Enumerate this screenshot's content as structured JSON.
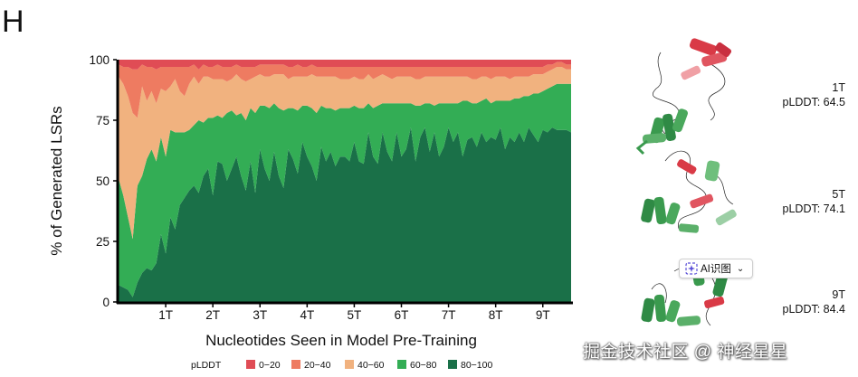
{
  "panel_letter": "H",
  "chart_data": {
    "type": "area",
    "stacked": true,
    "ylabel": "% of Generated LSRs",
    "xlabel": "Nucleotides Seen in Model Pre-Training",
    "ylim": [
      0,
      100
    ],
    "xlim": [
      0,
      9.6
    ],
    "yticks": [
      "0",
      "25",
      "50",
      "75",
      "100"
    ],
    "ytick_values": [
      0,
      25,
      50,
      75,
      100
    ],
    "xticks": [
      "1T",
      "2T",
      "3T",
      "4T",
      "5T",
      "6T",
      "7T",
      "8T",
      "9T"
    ],
    "xtick_values": [
      1,
      2,
      3,
      4,
      5,
      6,
      7,
      8,
      9
    ],
    "legend_title": "pLDDT",
    "legend_position": "bottom",
    "x": [
      0,
      0.1,
      0.2,
      0.3,
      0.4,
      0.5,
      0.6,
      0.7,
      0.8,
      0.9,
      1.0,
      1.1,
      1.2,
      1.3,
      1.4,
      1.5,
      1.6,
      1.7,
      1.8,
      1.9,
      2.0,
      2.1,
      2.2,
      2.3,
      2.4,
      2.5,
      2.6,
      2.7,
      2.8,
      2.9,
      3.0,
      3.1,
      3.2,
      3.3,
      3.4,
      3.5,
      3.6,
      3.7,
      3.8,
      3.9,
      4.0,
      4.1,
      4.2,
      4.3,
      4.4,
      4.5,
      4.6,
      4.7,
      4.8,
      4.9,
      5.0,
      5.1,
      5.2,
      5.3,
      5.4,
      5.5,
      5.6,
      5.7,
      5.8,
      5.9,
      6.0,
      6.1,
      6.2,
      6.3,
      6.4,
      6.5,
      6.6,
      6.7,
      6.8,
      6.9,
      7.0,
      7.1,
      7.2,
      7.3,
      7.4,
      7.5,
      7.6,
      7.7,
      7.8,
      7.9,
      8.0,
      8.1,
      8.2,
      8.3,
      8.4,
      8.5,
      8.6,
      8.7,
      8.8,
      8.9,
      9.0,
      9.1,
      9.2,
      9.3,
      9.4,
      9.5,
      9.6
    ],
    "series": [
      {
        "name": "80−100",
        "color": "#1a7048",
        "values": [
          7,
          6,
          5,
          2,
          8,
          12,
          14,
          13,
          16,
          28,
          20,
          35,
          30,
          40,
          43,
          46,
          48,
          45,
          52,
          55,
          44,
          58,
          57,
          50,
          55,
          60,
          52,
          46,
          58,
          45,
          63,
          55,
          50,
          62,
          52,
          47,
          63,
          59,
          53,
          66,
          60,
          56,
          50,
          64,
          58,
          62,
          56,
          60,
          60,
          58,
          66,
          58,
          57,
          70,
          60,
          57,
          70,
          62,
          58,
          70,
          60,
          63,
          72,
          58,
          68,
          72,
          62,
          70,
          60,
          64,
          72,
          66,
          70,
          60,
          67,
          68,
          64,
          70,
          66,
          68,
          67,
          72,
          63,
          68,
          66,
          70,
          66,
          72,
          69,
          66,
          71,
          70,
          72,
          71,
          71,
          71,
          70
        ]
      },
      {
        "name": "60−80",
        "color": "#33ad55",
        "values": [
          44,
          38,
          30,
          24,
          40,
          40,
          45,
          50,
          42,
          40,
          40,
          36,
          40,
          30,
          27,
          25,
          25,
          30,
          22,
          21,
          32,
          19,
          19,
          28,
          24,
          17,
          26,
          29,
          22,
          33,
          18,
          26,
          30,
          20,
          28,
          32,
          17,
          21,
          26,
          15,
          21,
          24,
          28,
          17,
          22,
          18,
          23,
          20,
          20,
          22,
          15,
          22,
          23,
          12,
          20,
          24,
          12,
          20,
          24,
          12,
          22,
          19,
          10,
          23,
          13,
          10,
          20,
          11,
          22,
          18,
          10,
          16,
          12,
          23,
          16,
          14,
          18,
          13,
          18,
          14,
          16,
          11,
          20,
          15,
          18,
          14,
          19,
          13,
          17,
          20,
          16,
          18,
          17,
          19,
          19,
          19,
          20
        ]
      },
      {
        "name": "40−60",
        "color": "#f1b27f",
        "values": [
          42,
          46,
          50,
          52,
          28,
          37,
          24,
          24,
          24,
          20,
          27,
          18,
          22,
          17,
          15,
          19,
          20,
          15,
          19,
          17,
          16,
          15,
          16,
          13,
          13,
          17,
          14,
          16,
          12,
          15,
          13,
          12,
          13,
          12,
          14,
          15,
          12,
          13,
          14,
          12,
          12,
          14,
          15,
          12,
          13,
          13,
          14,
          12,
          12,
          12,
          12,
          12,
          12,
          12,
          12,
          12,
          12,
          11,
          10,
          11,
          11,
          11,
          11,
          11,
          11,
          11,
          11,
          12,
          11,
          11,
          11,
          11,
          11,
          10,
          10,
          10,
          10,
          10,
          9,
          10,
          10,
          10,
          10,
          9,
          9,
          9,
          8,
          8,
          8,
          8,
          7,
          7,
          7,
          7,
          7,
          6,
          6
        ]
      },
      {
        "name": "20−40",
        "color": "#ee7b61",
        "values": [
          5,
          7,
          12,
          18,
          20,
          9,
          14,
          10,
          14,
          9,
          10,
          8,
          5,
          10,
          12,
          7,
          5,
          6,
          5,
          4,
          5,
          6,
          5,
          6,
          5,
          4,
          5,
          6,
          5,
          4,
          4,
          5,
          5,
          4,
          4,
          4,
          5,
          4,
          5,
          4,
          4,
          4,
          4,
          4,
          4,
          4,
          4,
          5,
          5,
          5,
          4,
          5,
          5,
          3,
          5,
          4,
          3,
          4,
          5,
          4,
          4,
          4,
          4,
          5,
          5,
          4,
          4,
          4,
          4,
          4,
          4,
          4,
          4,
          4,
          4,
          5,
          5,
          4,
          4,
          5,
          4,
          4,
          4,
          5,
          4,
          4,
          4,
          4,
          3,
          3,
          3,
          3,
          2,
          2,
          2,
          2,
          2
        ]
      },
      {
        "name": "0−20",
        "color": "#e04c55",
        "values": [
          2,
          3,
          3,
          4,
          4,
          2,
          3,
          3,
          4,
          3,
          3,
          3,
          3,
          3,
          3,
          3,
          2,
          4,
          2,
          3,
          3,
          2,
          3,
          3,
          3,
          2,
          3,
          3,
          3,
          3,
          2,
          2,
          2,
          2,
          2,
          2,
          3,
          3,
          2,
          3,
          3,
          2,
          3,
          3,
          3,
          3,
          3,
          3,
          3,
          3,
          3,
          3,
          3,
          3,
          3,
          3,
          3,
          3,
          3,
          3,
          3,
          3,
          3,
          3,
          3,
          3,
          3,
          3,
          3,
          3,
          3,
          3,
          3,
          3,
          3,
          3,
          3,
          3,
          3,
          3,
          3,
          3,
          3,
          3,
          3,
          3,
          3,
          3,
          3,
          3,
          3,
          2,
          2,
          1,
          1,
          2,
          2
        ]
      }
    ],
    "legend_order": [
      "0−20",
      "20−40",
      "40−60",
      "60−80",
      "80−100"
    ]
  },
  "structures": [
    {
      "name": "1T",
      "plddt": "pLDDT: 64.5"
    },
    {
      "name": "5T",
      "plddt": "pLDDT: 74.1"
    },
    {
      "name": "9T",
      "plddt": "pLDDT: 84.4"
    }
  ],
  "overlay": {
    "ai_chip_label": "AI识图",
    "watermark": "掘金技术社区 @ 神经星星"
  }
}
